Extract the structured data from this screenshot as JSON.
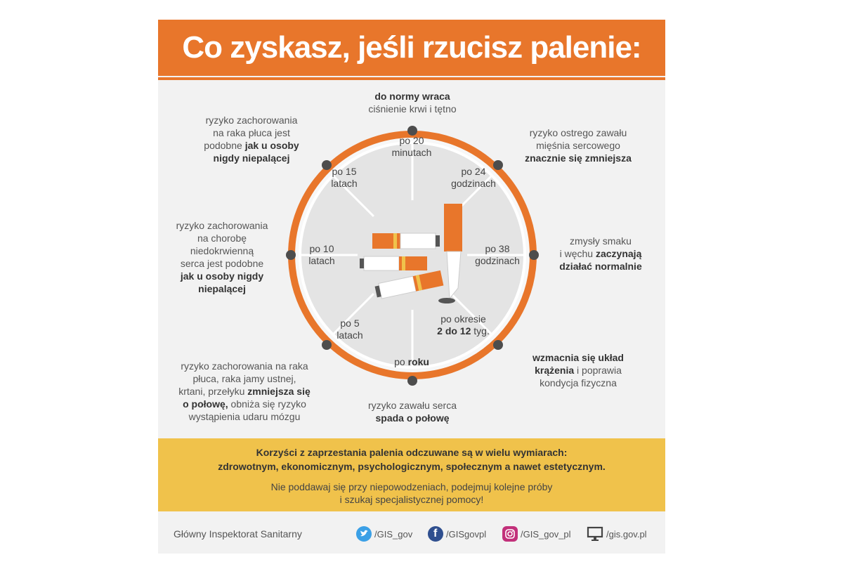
{
  "title": "Co zyskasz, jeśli rzucisz palenie:",
  "colors": {
    "orange": "#e8762b",
    "yellow": "#f0c24b",
    "dot": "#4d4d4d"
  },
  "milestones": {
    "m20min": {
      "time_a": "po 20",
      "time_b": "minutach",
      "b1": "do normy wraca",
      "t1": "ciśnienie krwi i tętno"
    },
    "m24h": {
      "time_a": "po 24",
      "time_b": "godzinach",
      "t1": "ryzyko ostrego zawału",
      "t2": "mięśnia sercowego",
      "b1": "znacznie się zmniejsza"
    },
    "m38h": {
      "time_a": "po 38",
      "time_b": "godzinach",
      "t1": "zmysły smaku",
      "t2": "i węchu ",
      "b1": "zaczynają",
      "b2": "działać normalnie"
    },
    "m2_12w": {
      "time_a": "po okresie",
      "time_b": "2 do 12",
      "time_c": " tyg.",
      "b1": "wzmacnia się układ",
      "b2": "krążenia",
      "t1": " i poprawia",
      "t2": "kondycja fizyczna"
    },
    "m1y": {
      "time_a": "po ",
      "time_b": "roku",
      "t1": "ryzyko zawału serca",
      "b1": "spada o połowę"
    },
    "m5y": {
      "time_a": "po 5",
      "time_b": "latach",
      "t1": "ryzyko zachorowania na raka",
      "t2": "płuca, raka jamy ustnej,",
      "t3": "krtani, przełyku ",
      "b1": "zmniejsza się",
      "b2": "o połowę,",
      "t4": " obniża się ryzyko",
      "t5": "wystąpienia udaru mózgu"
    },
    "m10y": {
      "time_a": "po 10",
      "time_b": "latach",
      "t1": "ryzyko zachorowania",
      "t2": "na chorobę",
      "t3": "niedokrwienną",
      "t4": "serca jest podobne",
      "b1": "jak u osoby nigdy",
      "b2": "niepalącej"
    },
    "m15y": {
      "time_a": "po 15",
      "time_b": "latach",
      "t1": "ryzyko zachorowania",
      "t2": "na raka płuca jest",
      "t3": "podobne ",
      "b1": "jak u osoby",
      "b2": "nigdy niepalącej"
    }
  },
  "banner": {
    "line1": "Korzyści z zaprzestania palenia odczuwane są w wielu wymiarach:",
    "line2": "zdrowotnym, ekonomicznym, psychologicznym, społecznym a nawet estetycznym.",
    "line3": "Nie poddawaj się przy niepowodzeniach, podejmuj kolejne próby",
    "line4": "i szukaj specjalistycznej pomocy!"
  },
  "footer": {
    "org": "Główny Inspektorat Sanitarny",
    "twitter": "/GIS_gov",
    "facebook": "/GISgovpl",
    "instagram": "/GIS_gov_pl",
    "web": "/gis.gov.pl"
  }
}
